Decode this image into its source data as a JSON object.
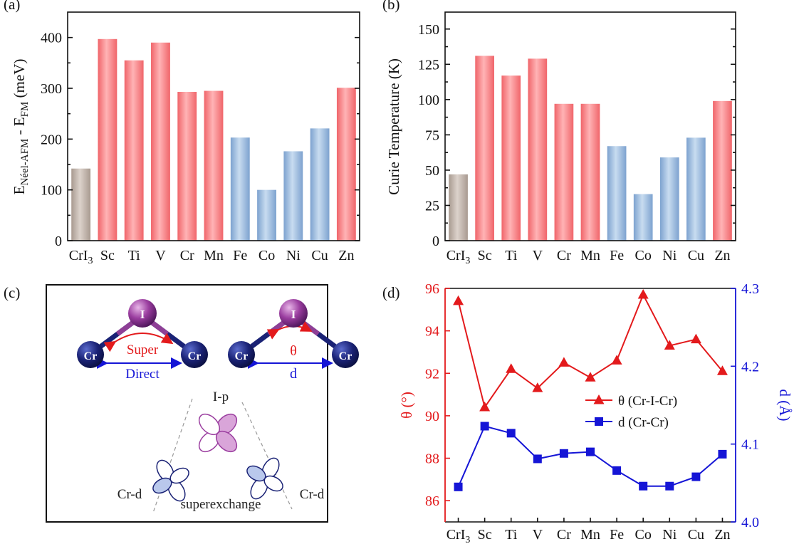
{
  "chart_data": [
    {
      "panel": "(a)",
      "type": "bar",
      "categories": [
        "CrI",
        "Sc",
        "Ti",
        "V",
        "Cr",
        "Mn",
        "Fe",
        "Co",
        "Ni",
        "Cu",
        "Zn"
      ],
      "first_category_subscript": "3",
      "values": [
        142,
        397,
        355,
        390,
        293,
        295,
        203,
        100,
        176,
        221,
        301
      ],
      "ylim": [
        0,
        450
      ],
      "yticks": [
        0,
        100,
        200,
        300,
        400
      ],
      "ylabel": {
        "main": "E",
        "sub1": "Néel-AFM",
        "mid": " - E",
        "sub2": "FM",
        "unit": "  (meV)"
      },
      "bar_colors": [
        "#b8aaa0",
        "#f4777a",
        "#f4777a",
        "#f4777a",
        "#f4777a",
        "#f4777a",
        "#8fb1d8",
        "#8fb1d8",
        "#8fb1d8",
        "#8fb1d8",
        "#f4777a"
      ]
    },
    {
      "panel": "(b)",
      "type": "bar",
      "categories": [
        "CrI",
        "Sc",
        "Ti",
        "V",
        "Cr",
        "Mn",
        "Fe",
        "Co",
        "Ni",
        "Cu",
        "Zn"
      ],
      "first_category_subscript": "3",
      "values": [
        47,
        131,
        117,
        129,
        97,
        97,
        67,
        33,
        59,
        73,
        99
      ],
      "ylim": [
        0,
        162
      ],
      "yticks": [
        0,
        25,
        50,
        75,
        100,
        125,
        150
      ],
      "ylabel": "Curie Temperature (K)",
      "bar_colors": [
        "#b8aaa0",
        "#f4777a",
        "#f4777a",
        "#f4777a",
        "#f4777a",
        "#f4777a",
        "#8fb1d8",
        "#8fb1d8",
        "#8fb1d8",
        "#8fb1d8",
        "#f4777a"
      ]
    },
    {
      "panel": "(d)",
      "type": "line",
      "categories": [
        "CrI",
        "Sc",
        "Ti",
        "V",
        "Cr",
        "Mn",
        "Fe",
        "Co",
        "Ni",
        "Cu",
        "Zn"
      ],
      "first_category_subscript": "3",
      "series": [
        {
          "name": "θ (Cr-I-Cr)",
          "axis": "left",
          "color": "#e31a1c",
          "marker": "triangle",
          "values": [
            95.4,
            90.4,
            92.2,
            91.3,
            92.5,
            91.8,
            92.6,
            95.7,
            93.3,
            93.6,
            92.1
          ]
        },
        {
          "name": "d (Cr-Cr)",
          "axis": "right",
          "color": "#1515d6",
          "marker": "square",
          "values": [
            4.045,
            4.123,
            4.114,
            4.081,
            4.088,
            4.09,
            4.066,
            4.046,
            4.046,
            4.058,
            4.087
          ]
        }
      ],
      "ylim_left": [
        85,
        96
      ],
      "yticks_left": [
        86,
        88,
        90,
        92,
        94,
        96
      ],
      "ylabel_left": "θ (°)",
      "ylim_right": [
        4.0,
        4.3
      ],
      "yticks_right": [
        4.0,
        4.1,
        4.2,
        4.3
      ],
      "ylabel_right": "d (Å)",
      "legend_position": "middle-right"
    }
  ],
  "diagram_c": {
    "panel": "(c)",
    "atom_I": "I",
    "atom_Cr": "Cr",
    "label_super": "Super",
    "label_direct": "Direct",
    "label_theta": "θ",
    "label_d": "d",
    "orbital_ip": "I-p",
    "orbital_crd_left": "Cr-d",
    "orbital_crd_right": "Cr-d",
    "label_superexchange": "superexchange"
  }
}
